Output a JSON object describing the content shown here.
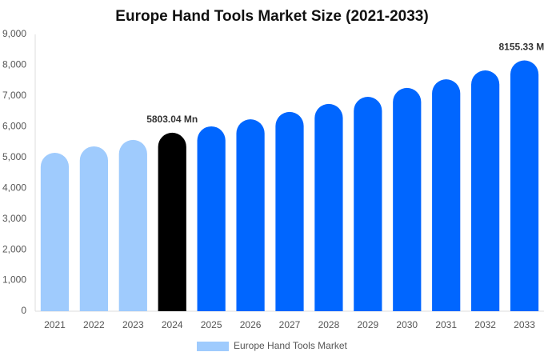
{
  "chart_data": {
    "type": "bar",
    "title": "Europe Hand Tools Market Size (2021-2033)",
    "categories": [
      "2021",
      "2022",
      "2023",
      "2024",
      "2025",
      "2026",
      "2027",
      "2028",
      "2029",
      "2030",
      "2031",
      "2032",
      "2033"
    ],
    "series": [
      {
        "name": "Europe Hand Tools Market",
        "color": "#9fcbfd",
        "colors": [
          "#9fcbfd",
          "#9fcbfd",
          "#9fcbfd",
          "#000000",
          "#0066ff",
          "#0066ff",
          "#0066ff",
          "#0066ff",
          "#0066ff",
          "#0066ff",
          "#0066ff",
          "#0066ff",
          "#0066ff"
        ],
        "values": [
          5150,
          5360,
          5570,
          5803.04,
          6010,
          6240,
          6480,
          6740,
          6970,
          7260,
          7540,
          7830,
          8155.33
        ],
        "value_labels": [
          null,
          null,
          null,
          "5803.04 Mn",
          null,
          null,
          null,
          null,
          null,
          null,
          null,
          null,
          "8155.33 Mn"
        ]
      }
    ],
    "ylim": [
      0,
      9000
    ],
    "yticks": [
      0,
      {
        "value": 1000,
        "label": "1,000"
      },
      {
        "value": 2000,
        "label": "2,000"
      },
      {
        "value": 3000,
        "label": "3,000"
      },
      {
        "value": 4000,
        "label": "4,000"
      },
      {
        "value": 5000,
        "label": "5,000"
      },
      {
        "value": 6000,
        "label": "6,000"
      },
      {
        "value": 7000,
        "label": "7,000"
      },
      {
        "value": 8000,
        "label": "8,000"
      },
      {
        "value": 9000,
        "label": "9,000"
      }
    ],
    "grid": false,
    "legend": "bottom"
  }
}
